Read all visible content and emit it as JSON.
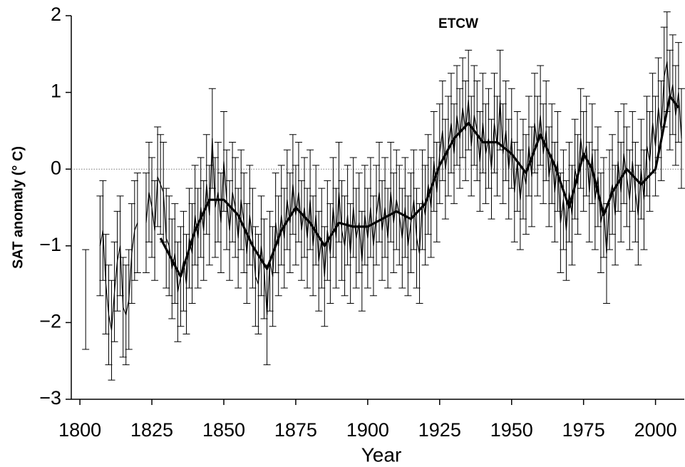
{
  "chart_data": {
    "type": "errorline",
    "title": "ETCW",
    "x_label": "Year",
    "y_label": "SAT anomaly (° C)",
    "xlim": [
      1797,
      2010
    ],
    "ylim": [
      -3,
      2
    ],
    "xticks": [
      1800,
      1825,
      1850,
      1875,
      1900,
      1925,
      1950,
      1975,
      2000
    ],
    "yticks": [
      {
        "value": -3,
        "label": "−3"
      },
      {
        "value": -2,
        "label": "−2"
      },
      {
        "value": -1,
        "label": "−1"
      },
      0,
      1,
      2
    ],
    "zero_line": 0,
    "x": [
      1802,
      1803,
      1804,
      1805,
      1806,
      1807,
      1808,
      1809,
      1810,
      1811,
      1812,
      1813,
      1814,
      1815,
      1816,
      1817,
      1818,
      1819,
      1820,
      1821,
      1822,
      1823,
      1824,
      1825,
      1826,
      1827,
      1828,
      1829,
      1830,
      1831,
      1832,
      1833,
      1834,
      1835,
      1836,
      1837,
      1838,
      1839,
      1840,
      1841,
      1842,
      1843,
      1844,
      1845,
      1846,
      1847,
      1848,
      1849,
      1850,
      1851,
      1852,
      1853,
      1854,
      1855,
      1856,
      1857,
      1858,
      1859,
      1860,
      1861,
      1862,
      1863,
      1864,
      1865,
      1866,
      1867,
      1868,
      1869,
      1870,
      1871,
      1872,
      1873,
      1874,
      1875,
      1876,
      1877,
      1878,
      1879,
      1880,
      1881,
      1882,
      1883,
      1884,
      1885,
      1886,
      1887,
      1888,
      1889,
      1890,
      1891,
      1892,
      1893,
      1894,
      1895,
      1896,
      1897,
      1898,
      1899,
      1900,
      1901,
      1902,
      1903,
      1904,
      1905,
      1906,
      1907,
      1908,
      1909,
      1910,
      1911,
      1912,
      1913,
      1914,
      1915,
      1916,
      1917,
      1918,
      1919,
      1920,
      1921,
      1922,
      1923,
      1924,
      1925,
      1926,
      1927,
      1928,
      1929,
      1930,
      1931,
      1932,
      1933,
      1934,
      1935,
      1936,
      1937,
      1938,
      1939,
      1940,
      1941,
      1942,
      1943,
      1944,
      1945,
      1946,
      1947,
      1948,
      1949,
      1950,
      1951,
      1952,
      1953,
      1954,
      1955,
      1956,
      1957,
      1958,
      1959,
      1960,
      1961,
      1962,
      1963,
      1964,
      1965,
      1966,
      1967,
      1968,
      1969,
      1970,
      1971,
      1972,
      1973,
      1974,
      1975,
      1976,
      1977,
      1978,
      1979,
      1980,
      1981,
      1982,
      1983,
      1984,
      1985,
      1986,
      1987,
      1988,
      1989,
      1990,
      1991,
      1992,
      1993,
      1994,
      1995,
      1996,
      1997,
      1998,
      1999,
      2000,
      2001,
      2002,
      2003,
      2004,
      2005,
      2006,
      2007,
      2008,
      2009
    ],
    "series": [
      {
        "color": "#000000",
        "error": 0.65,
        "values": [
          -1.7,
          null,
          null,
          null,
          null,
          -1.0,
          -0.8,
          -1.5,
          -1.9,
          -2.1,
          -1.6,
          -1.2,
          -1.0,
          -1.8,
          -1.9,
          -1.7,
          -1.1,
          -0.8,
          -0.7,
          null,
          null,
          -0.7,
          -0.3,
          -0.5,
          -0.8,
          -0.1,
          -0.2,
          -0.3,
          -0.9,
          -1.0,
          -1.3,
          -1.1,
          -1.6,
          -1.4,
          -1.2,
          -1.5,
          -0.9,
          -1.1,
          -0.6,
          -0.9,
          -0.5,
          -0.8,
          -0.2,
          -0.6,
          0.4,
          -0.5,
          -0.3,
          -0.7,
          0.1,
          -0.4,
          -0.8,
          -0.3,
          -0.5,
          -0.9,
          -0.4,
          -0.7,
          -1.1,
          -0.6,
          -0.9,
          -1.4,
          -1.5,
          -1.0,
          -1.3,
          -1.9,
          -1.2,
          -1.4,
          -0.7,
          -1.0,
          -0.6,
          -0.9,
          -0.4,
          -0.7,
          -0.2,
          -0.6,
          -0.3,
          -0.8,
          -0.5,
          -0.9,
          -0.4,
          -1.0,
          -0.6,
          -1.2,
          -0.9,
          -1.4,
          -0.8,
          -1.1,
          -0.5,
          -0.9,
          -0.3,
          -0.8,
          -1.0,
          -0.6,
          -1.1,
          -0.5,
          -0.9,
          -0.7,
          -1.2,
          -0.6,
          -0.9,
          -0.5,
          -1.0,
          -0.6,
          -0.3,
          -0.8,
          -0.5,
          -0.9,
          -0.3,
          -0.7,
          -0.4,
          -0.6,
          -0.9,
          -0.5,
          -1.0,
          -0.7,
          -0.4,
          -0.9,
          -1.1,
          -0.4,
          -0.6,
          -0.2,
          -0.5,
          0.1,
          -0.3,
          0.2,
          0.5,
          0.0,
          0.3,
          0.6,
          0.2,
          0.7,
          0.4,
          0.8,
          0.5,
          0.9,
          0.3,
          0.7,
          0.5,
          0.1,
          0.6,
          0.2,
          0.4,
          0.0,
          0.6,
          0.3,
          0.9,
          0.2,
          0.5,
          0.0,
          0.4,
          -0.3,
          0.1,
          -0.4,
          0.0,
          -0.2,
          0.3,
          -0.1,
          0.6,
          0.3,
          0.7,
          0.2,
          0.5,
          -0.1,
          0.2,
          -0.3,
          0.1,
          -0.7,
          -0.4,
          -0.8,
          -0.3,
          -0.6,
          0.0,
          -0.2,
          0.4,
          0.1,
          0.3,
          -0.3,
          0.2,
          -0.4,
          -0.1,
          -0.7,
          -0.5,
          -1.1,
          -0.4,
          -0.2,
          -0.6,
          0.1,
          -0.3,
          0.2,
          -0.1,
          -0.4,
          0.1,
          -0.3,
          -0.6,
          0.0,
          -0.4,
          0.3,
          0.1,
          0.6,
          0.3,
          0.8,
          0.5,
          1.2,
          1.4,
          0.9,
          1.1,
          0.7,
          1.0,
          0.4
        ]
      },
      {
        "color": "#000000",
        "x": [
          1828,
          1835,
          1840,
          1845,
          1850,
          1855,
          1860,
          1865,
          1870,
          1875,
          1880,
          1885,
          1890,
          1895,
          1900,
          1905,
          1910,
          1915,
          1920,
          1925,
          1930,
          1935,
          1940,
          1945,
          1950,
          1955,
          1960,
          1965,
          1970,
          1975,
          1978,
          1982,
          1985,
          1990,
          1995,
          2000,
          2005,
          2008
        ],
        "values": [
          -0.9,
          -1.4,
          -0.8,
          -0.4,
          -0.4,
          -0.6,
          -1.0,
          -1.3,
          -0.8,
          -0.5,
          -0.7,
          -1.0,
          -0.7,
          -0.75,
          -0.75,
          -0.65,
          -0.55,
          -0.65,
          -0.45,
          0.05,
          0.4,
          0.6,
          0.35,
          0.35,
          0.2,
          -0.05,
          0.45,
          0.05,
          -0.5,
          0.2,
          0.0,
          -0.6,
          -0.3,
          0.0,
          -0.2,
          0.0,
          0.95,
          0.8
        ]
      }
    ]
  }
}
